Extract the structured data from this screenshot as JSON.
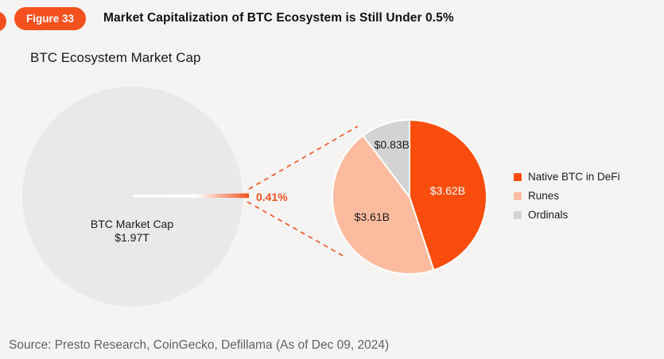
{
  "figure": {
    "badge_label": "Figure 33",
    "title": "Market Capitalization of BTC Ecosystem is Still Under 0.5%"
  },
  "chart_data": {
    "type": "pie",
    "title": "BTC Ecosystem Market Cap",
    "unit": "USD billions",
    "legend_position": "right",
    "slices": [
      {
        "id": "native-btc-in-defi",
        "label": "Native BTC in DeFi",
        "value": 3.62,
        "display": "$3.62B",
        "color": "#FA4D0D",
        "label_color": "#FFFFFF"
      },
      {
        "id": "runes",
        "label": "Runes",
        "value": 3.61,
        "display": "$3.61B",
        "color": "#FCBB9F",
        "label_color": "#1B1B1B"
      },
      {
        "id": "ordinals",
        "label": "Ordinals",
        "value": 0.83,
        "display": "$0.83B",
        "color": "#D3D3D3",
        "label_color": "#1B1B1B"
      }
    ],
    "comparison": {
      "label": "BTC Market Cap",
      "display": "$1.97T",
      "share_display": "0.41%"
    }
  },
  "colors": {
    "accent_orange": "#F4511E",
    "pie_orange": "#FA4D0D",
    "pie_salmon": "#FCBB9F",
    "pie_gray": "#D3D3D3",
    "big_circle_gray": "#E9E9E9",
    "background": "#F5F4F3"
  },
  "source": {
    "text": "Source: Presto Research, CoinGecko, Defillama (As of Dec 09, 2024)"
  }
}
